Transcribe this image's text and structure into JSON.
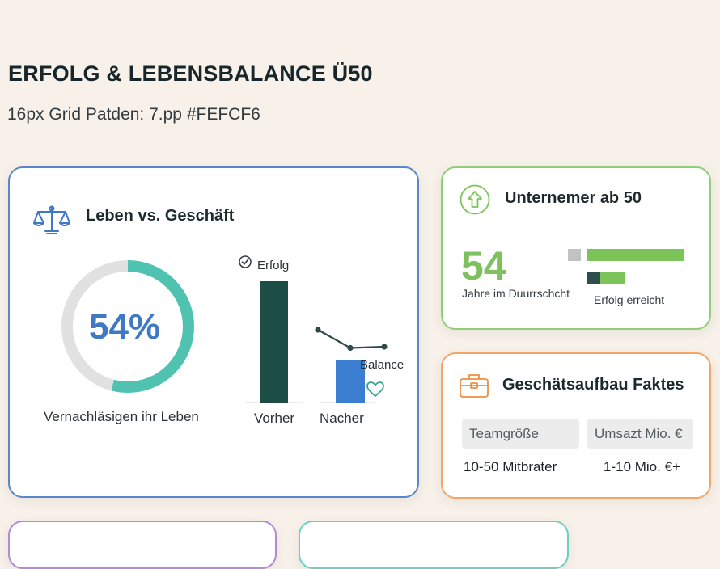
{
  "header": {
    "title": "ERFOLG & LEBENSBALANCE Ü50",
    "subtitle": "16px Grid Patden: 7.pp #FEFCF6"
  },
  "life_card": {
    "title": "Leben vs. Geschäft",
    "icon": "balance-scale-icon",
    "donut_label": "54%",
    "donut_value": 0.54,
    "donut_caption": "Vernachläsigen ihr Leben",
    "bar_legend": "Erfolg",
    "line_label": "Balance",
    "colors": {
      "accent": "#5b86c9",
      "teal": "#4fc3b0",
      "dark_bar": "#1c4e45",
      "blue_bar": "#3b7dd0"
    },
    "chart_data": {
      "type": "bar",
      "categories": [
        "Vorher",
        "Nacher"
      ],
      "series": [
        {
          "name": "Erfolg",
          "values": [
            100,
            35
          ]
        }
      ],
      "balance_line": [
        60,
        45,
        46
      ],
      "ylim": [
        0,
        100
      ]
    }
  },
  "founder_card": {
    "title": "Unternemer ab 50",
    "icon": "arrow-up-circle-icon",
    "number": "54",
    "number_caption": "Jahre im Duurrschcht",
    "bar_caption": "Erfolg erreicht",
    "chart_data": {
      "type": "bar",
      "series": [
        {
          "values": [
            100
          ]
        },
        {
          "values": [
            32
          ]
        }
      ]
    },
    "colors": {
      "accent": "#8fcf78",
      "bar": "#7cc35a",
      "marker_light": "#c2c2c2",
      "marker_dark": "#2e4d4d"
    }
  },
  "facts_card": {
    "title": "Geschätsaufbau Faktes",
    "icon": "briefcase-icon",
    "headers": [
      "Teamgröße",
      "Umsazt Mio. €"
    ],
    "values": [
      "10-50 Mitbrater",
      "1-10 Mio. €+"
    ],
    "colors": {
      "accent": "#f2a668"
    }
  }
}
